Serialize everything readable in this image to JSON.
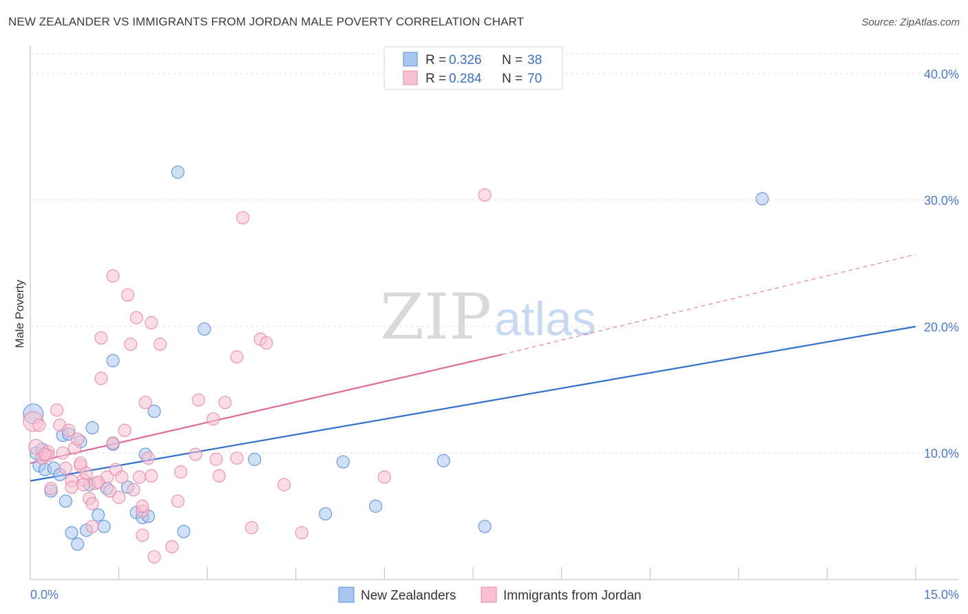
{
  "title": "NEW ZEALANDER VS IMMIGRANTS FROM JORDAN MALE POVERTY CORRELATION CHART",
  "source": "Source: ZipAtlas.com",
  "watermark": {
    "zip": "ZIP",
    "atlas": "atlas"
  },
  "colors": {
    "blue_fill": "#a9c6f0",
    "blue_stroke": "#5b8fd6",
    "blue_line": "#2f6fd0",
    "pink_fill": "#f7c1d1",
    "pink_stroke": "#e889a8",
    "pink_line": "#e0699a",
    "grid": "#dddddd",
    "tick_text": "#4a78c8"
  },
  "legend": {
    "rows": [
      {
        "r_label": "R = ",
        "r_value": "0.326",
        "n_label": "N = ",
        "n_value": "38"
      },
      {
        "r_label": "R = ",
        "r_value": "0.284",
        "n_label": "N = ",
        "n_value": "70"
      }
    ]
  },
  "chart_data": {
    "type": "scatter",
    "title": "NEW ZEALANDER VS IMMIGRANTS FROM JORDAN MALE POVERTY CORRELATION CHART",
    "xlabel": "",
    "ylabel": "Male Poverty",
    "xlim": [
      0,
      15
    ],
    "ylim": [
      0,
      42
    ],
    "x_tick_labels": [
      "0.0%",
      "15.0%"
    ],
    "y_ticks": [
      10,
      20,
      30,
      40
    ],
    "y_tick_labels": [
      "10.0%",
      "20.0%",
      "30.0%",
      "40.0%"
    ],
    "grid": true,
    "legend_position": "top-center",
    "series": [
      {
        "name": "New Zealanders",
        "r": 0.326,
        "n": 38,
        "trend": {
          "x0": 0,
          "y0": 7.8,
          "x1": 15,
          "y1": 20.0
        },
        "points": [
          [
            0.05,
            13.1,
            1.6
          ],
          [
            0.1,
            10.0,
            1.0
          ],
          [
            0.15,
            9.0,
            1.0
          ],
          [
            0.2,
            10.3,
            1.0
          ],
          [
            0.25,
            8.7,
            1.0
          ],
          [
            0.35,
            7.0,
            1.0
          ],
          [
            0.4,
            8.8,
            1.0
          ],
          [
            0.5,
            8.3,
            1.0
          ],
          [
            0.55,
            11.4,
            1.0
          ],
          [
            0.6,
            6.2,
            1.0
          ],
          [
            0.65,
            11.5,
            1.0
          ],
          [
            0.7,
            3.7,
            1.0
          ],
          [
            0.8,
            2.8,
            1.0
          ],
          [
            0.85,
            10.9,
            1.0
          ],
          [
            0.95,
            3.9,
            1.0
          ],
          [
            1.0,
            7.5,
            1.0
          ],
          [
            1.05,
            12.0,
            1.0
          ],
          [
            1.15,
            5.1,
            1.0
          ],
          [
            1.25,
            4.2,
            1.0
          ],
          [
            1.3,
            7.2,
            1.0
          ],
          [
            1.4,
            10.7,
            1.0
          ],
          [
            1.4,
            17.3,
            1.0
          ],
          [
            1.65,
            7.3,
            1.0
          ],
          [
            1.8,
            5.3,
            1.0
          ],
          [
            1.9,
            4.9,
            1.0
          ],
          [
            1.95,
            9.9,
            1.0
          ],
          [
            2.0,
            5.0,
            1.0
          ],
          [
            2.1,
            13.3,
            1.0
          ],
          [
            2.5,
            32.2,
            1.0
          ],
          [
            2.6,
            3.8,
            1.0
          ],
          [
            2.95,
            19.8,
            1.0
          ],
          [
            3.8,
            9.5,
            1.0
          ],
          [
            5.0,
            5.2,
            1.0
          ],
          [
            5.3,
            9.3,
            1.0
          ],
          [
            5.85,
            5.8,
            1.0
          ],
          [
            7.0,
            9.4,
            1.0
          ],
          [
            7.7,
            4.2,
            1.0
          ],
          [
            12.4,
            30.1,
            1.0
          ]
        ]
      },
      {
        "name": "Immigrants from Jordan",
        "r": 0.284,
        "n": 70,
        "trend": {
          "x0": 0,
          "y0": 9.2,
          "x1": 8.0,
          "y1": 17.8,
          "dash_x1": 15,
          "dash_y1": 25.7
        },
        "points": [
          [
            0.05,
            12.5,
            1.6
          ],
          [
            0.1,
            10.5,
            1.2
          ],
          [
            0.2,
            9.6,
            1.0
          ],
          [
            0.3,
            10.1,
            1.0
          ],
          [
            0.3,
            9.8,
            1.0
          ],
          [
            0.35,
            7.2,
            1.0
          ],
          [
            0.45,
            13.4,
            1.0
          ],
          [
            0.5,
            12.2,
            1.0
          ],
          [
            0.55,
            10.0,
            1.0
          ],
          [
            0.6,
            8.8,
            1.0
          ],
          [
            0.65,
            11.8,
            1.0
          ],
          [
            0.7,
            7.8,
            1.0
          ],
          [
            0.7,
            7.3,
            1.0
          ],
          [
            0.75,
            10.4,
            1.0
          ],
          [
            0.8,
            11.1,
            1.0
          ],
          [
            0.85,
            9.0,
            1.0
          ],
          [
            0.85,
            9.2,
            1.0
          ],
          [
            0.9,
            7.9,
            1.0
          ],
          [
            0.95,
            8.4,
            1.0
          ],
          [
            1.0,
            6.4,
            1.0
          ],
          [
            1.05,
            6.0,
            1.0
          ],
          [
            1.05,
            4.2,
            1.0
          ],
          [
            1.1,
            7.6,
            1.0
          ],
          [
            1.2,
            15.9,
            1.0
          ],
          [
            1.2,
            19.1,
            1.0
          ],
          [
            1.3,
            8.1,
            1.0
          ],
          [
            1.35,
            7.0,
            1.0
          ],
          [
            1.4,
            24.0,
            1.0
          ],
          [
            1.4,
            10.8,
            1.0
          ],
          [
            1.45,
            8.7,
            1.0
          ],
          [
            1.5,
            6.5,
            1.0
          ],
          [
            1.55,
            8.1,
            1.0
          ],
          [
            1.6,
            11.8,
            1.0
          ],
          [
            1.65,
            22.5,
            1.0
          ],
          [
            1.7,
            18.6,
            1.0
          ],
          [
            1.75,
            7.1,
            1.0
          ],
          [
            1.8,
            20.7,
            1.0
          ],
          [
            1.85,
            8.1,
            1.0
          ],
          [
            1.9,
            5.4,
            1.0
          ],
          [
            1.9,
            5.8,
            1.0
          ],
          [
            1.9,
            3.5,
            1.0
          ],
          [
            1.95,
            14.0,
            1.0
          ],
          [
            2.0,
            9.6,
            1.0
          ],
          [
            2.05,
            20.3,
            1.0
          ],
          [
            2.05,
            8.2,
            1.0
          ],
          [
            2.1,
            1.8,
            1.0
          ],
          [
            2.2,
            18.6,
            1.0
          ],
          [
            2.4,
            2.6,
            1.0
          ],
          [
            2.5,
            6.2,
            1.0
          ],
          [
            2.55,
            8.5,
            1.0
          ],
          [
            2.8,
            9.9,
            1.0
          ],
          [
            2.85,
            14.2,
            1.0
          ],
          [
            3.1,
            12.7,
            1.0
          ],
          [
            3.15,
            9.5,
            1.0
          ],
          [
            3.2,
            8.2,
            1.0
          ],
          [
            3.3,
            14.0,
            1.0
          ],
          [
            3.5,
            9.6,
            1.0
          ],
          [
            3.5,
            17.6,
            1.0
          ],
          [
            3.6,
            28.6,
            1.0
          ],
          [
            3.75,
            4.1,
            1.0
          ],
          [
            3.9,
            19.0,
            1.0
          ],
          [
            4.0,
            18.7,
            1.0
          ],
          [
            4.3,
            7.5,
            1.0
          ],
          [
            4.6,
            3.7,
            1.0
          ],
          [
            6.0,
            8.1,
            1.0
          ],
          [
            7.7,
            30.4,
            1.0
          ],
          [
            0.15,
            12.2,
            1.0
          ],
          [
            0.25,
            9.9,
            1.0
          ],
          [
            1.15,
            7.7,
            1.0
          ],
          [
            0.9,
            7.5,
            1.0
          ]
        ]
      }
    ]
  },
  "bottom_legend": {
    "items": [
      {
        "label": "New Zealanders"
      },
      {
        "label": "Immigrants from Jordan"
      }
    ]
  }
}
